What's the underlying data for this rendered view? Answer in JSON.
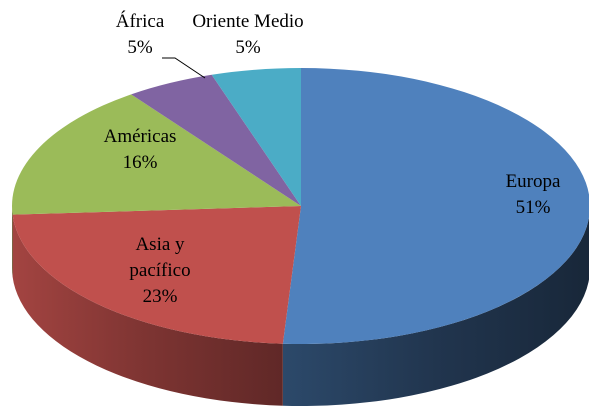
{
  "chart_data": {
    "type": "pie",
    "categories": [
      "Europa",
      "Asia y pacífico",
      "Américas",
      "África",
      "Oriente Medio"
    ],
    "values": [
      51,
      23,
      16,
      5,
      5
    ],
    "value_labels": [
      "51%",
      "23%",
      "16%",
      "5%",
      "5%"
    ],
    "colors": [
      "#4f81bd",
      "#c0504d",
      "#9bbb59",
      "#8064a2",
      "#4bacc6"
    ]
  }
}
